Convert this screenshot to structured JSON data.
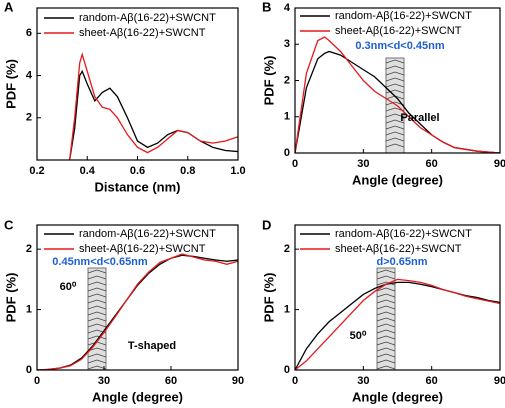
{
  "chart_data": [
    {
      "type": "line",
      "panel_label": "A",
      "xlabel": "Distance (nm)",
      "ylabel": "PDF (%)",
      "xlim": [
        0.2,
        1.0
      ],
      "xticks": [
        0.2,
        0.4,
        0.6,
        0.8,
        {
          "value": 1,
          "label": "1.0"
        }
      ],
      "ylim": [
        0,
        7.2
      ],
      "yticks": [
        2,
        4,
        6
      ],
      "x": [
        0.33,
        0.35,
        0.37,
        0.38,
        0.4,
        0.43,
        0.46,
        0.49,
        0.52,
        0.56,
        0.6,
        0.64,
        0.68,
        0.72,
        0.76,
        0.8,
        0.85,
        0.9,
        0.95,
        1.0
      ],
      "series": [
        {
          "name": "random-Aβ(16-22)+SWCNT",
          "color": "#000000",
          "values": [
            0,
            1.5,
            4.0,
            4.2,
            3.6,
            2.8,
            3.2,
            3.4,
            3.0,
            2.0,
            0.9,
            0.6,
            0.8,
            1.2,
            1.4,
            1.3,
            0.9,
            0.6,
            0.45,
            0.4
          ]
        },
        {
          "name": "sheet-Aβ(16-22)+SWCNT",
          "color": "#e41a1c",
          "values": [
            0,
            2.0,
            4.6,
            5.0,
            4.2,
            3.0,
            2.5,
            2.4,
            2.0,
            1.2,
            0.6,
            0.35,
            0.6,
            1.0,
            1.4,
            1.3,
            0.9,
            0.8,
            0.9,
            1.1
          ]
        }
      ],
      "annotations": []
    },
    {
      "type": "line",
      "panel_label": "B",
      "xlabel": "Angle (degree)",
      "ylabel": "PDF (%)",
      "xlim": [
        0,
        90
      ],
      "xticks": [
        0,
        30,
        60,
        90
      ],
      "ylim": [
        0,
        4
      ],
      "yticks": [
        0,
        1,
        2,
        3,
        4
      ],
      "x": [
        0,
        5,
        10,
        13,
        15,
        20,
        25,
        30,
        35,
        40,
        45,
        50,
        55,
        60,
        65,
        70,
        80,
        90
      ],
      "series": [
        {
          "name": "random-Aβ(16-22)+SWCNT",
          "color": "#000000",
          "values": [
            0,
            1.8,
            2.6,
            2.75,
            2.8,
            2.7,
            2.5,
            2.3,
            2.1,
            1.8,
            1.5,
            1.1,
            0.8,
            0.5,
            0.3,
            0.15,
            0.05,
            0
          ]
        },
        {
          "name": "sheet-Aβ(16-22)+SWCNT",
          "color": "#e41a1c",
          "values": [
            0,
            2.2,
            3.1,
            3.2,
            3.1,
            2.8,
            2.4,
            2.0,
            1.7,
            1.5,
            1.3,
            1.0,
            0.7,
            0.5,
            0.3,
            0.15,
            0.05,
            0
          ]
        }
      ],
      "annotations": [
        {
          "text": "0.3nm<d<0.45nm",
          "color": "#1f5fd0"
        },
        {
          "text": "Parallel",
          "color": "#000000"
        }
      ]
    },
    {
      "type": "line",
      "panel_label": "C",
      "xlabel": "Angle (degree)",
      "ylabel": "PDF (%)",
      "xlim": [
        0,
        90
      ],
      "xticks": [
        0,
        30,
        60,
        90
      ],
      "ylim": [
        0,
        2.4
      ],
      "yticks": [
        0,
        1,
        2
      ],
      "x": [
        0,
        5,
        10,
        15,
        20,
        25,
        30,
        35,
        40,
        45,
        50,
        55,
        60,
        65,
        70,
        75,
        80,
        85,
        90
      ],
      "series": [
        {
          "name": "random-Aβ(16-22)+SWCNT",
          "color": "#000000",
          "values": [
            0,
            0.01,
            0.03,
            0.08,
            0.2,
            0.4,
            0.65,
            0.9,
            1.15,
            1.4,
            1.6,
            1.75,
            1.85,
            1.9,
            1.88,
            1.85,
            1.82,
            1.8,
            1.82
          ]
        },
        {
          "name": "sheet-Aβ(16-22)+SWCNT",
          "color": "#e41a1c",
          "values": [
            0,
            0.01,
            0.03,
            0.07,
            0.18,
            0.38,
            0.62,
            0.88,
            1.15,
            1.42,
            1.62,
            1.78,
            1.85,
            1.92,
            1.87,
            1.82,
            1.8,
            1.75,
            1.8
          ]
        }
      ],
      "annotations": [
        {
          "text": "0.45nm<d<0.65nm",
          "color": "#1f5fd0"
        },
        {
          "text": "60⁰",
          "color": "#000000"
        },
        {
          "text": "T-shaped",
          "color": "#000000"
        }
      ]
    },
    {
      "type": "line",
      "panel_label": "D",
      "xlabel": "Angle (degree)",
      "ylabel": "PDF (%)",
      "xlim": [
        0,
        90
      ],
      "xticks": [
        0,
        30,
        60,
        90
      ],
      "ylim": [
        0,
        2.4
      ],
      "yticks": [
        0,
        1,
        2
      ],
      "x": [
        0,
        5,
        10,
        15,
        20,
        25,
        30,
        35,
        40,
        45,
        50,
        55,
        60,
        65,
        70,
        75,
        80,
        85,
        90
      ],
      "series": [
        {
          "name": "random-Aβ(16-22)+SWCNT",
          "color": "#000000",
          "values": [
            0,
            0.35,
            0.6,
            0.8,
            0.95,
            1.1,
            1.25,
            1.35,
            1.42,
            1.45,
            1.45,
            1.42,
            1.38,
            1.33,
            1.28,
            1.23,
            1.2,
            1.15,
            1.12
          ]
        },
        {
          "name": "sheet-Aβ(16-22)+SWCNT",
          "color": "#e41a1c",
          "values": [
            0,
            0.15,
            0.35,
            0.55,
            0.75,
            0.95,
            1.15,
            1.3,
            1.42,
            1.5,
            1.48,
            1.45,
            1.4,
            1.33,
            1.28,
            1.22,
            1.18,
            1.14,
            1.1
          ]
        }
      ],
      "annotations": [
        {
          "text": "d>0.65nm",
          "color": "#1f5fd0"
        },
        {
          "text": "50⁰",
          "color": "#000000"
        }
      ]
    }
  ]
}
